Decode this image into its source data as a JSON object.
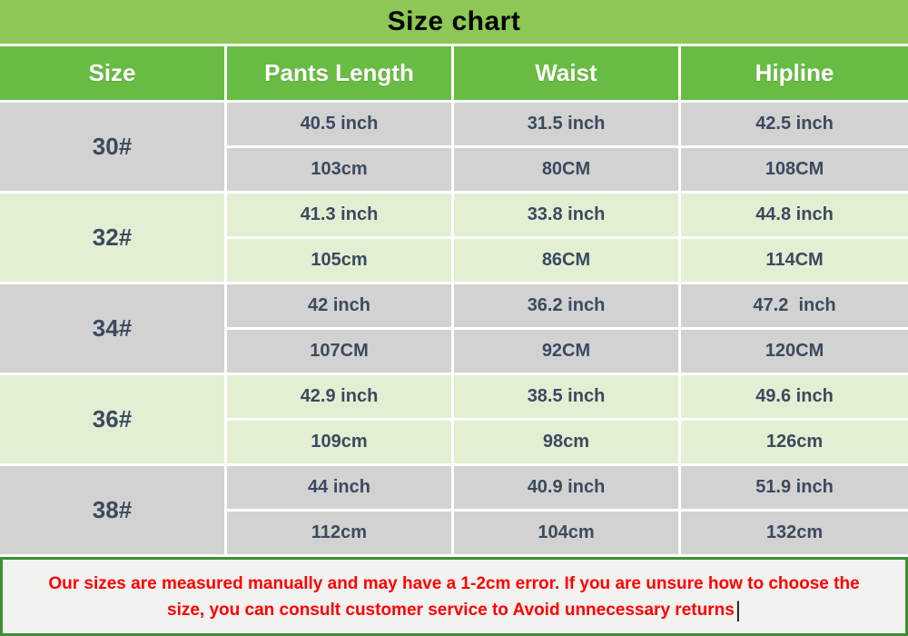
{
  "title": "Size chart",
  "colors": {
    "title_bar_green": "#8dc755",
    "header_green": "#68bc43",
    "row_gray": "#d2d2d2",
    "row_pale_green": "#e2efd3",
    "cell_text": "#3b4a5e",
    "header_text": "#ffffff",
    "note_background": "#f2f2f0",
    "note_border_green": "#3f8c39",
    "note_text_red": "#ff0000",
    "divider_white": "#ffffff"
  },
  "table": {
    "headers": [
      "Size",
      "Pants Length",
      "Waist",
      "Hipline"
    ],
    "rows": [
      {
        "size": "30#",
        "shade": "gray",
        "inch": [
          "40.5 inch",
          "31.5 inch",
          "42.5 inch"
        ],
        "cm": [
          "103cm",
          "80CM",
          "108CM"
        ]
      },
      {
        "size": "32#",
        "shade": "green",
        "inch": [
          "41.3 inch",
          "33.8 inch",
          "44.8 inch"
        ],
        "cm": [
          "105cm",
          "86CM",
          "114CM"
        ]
      },
      {
        "size": "34#",
        "shade": "gray",
        "inch": [
          "42 inch",
          "36.2 inch",
          "47.2  inch"
        ],
        "cm": [
          "107CM",
          "92CM",
          "120CM"
        ]
      },
      {
        "size": "36#",
        "shade": "green",
        "inch": [
          "42.9 inch",
          "38.5 inch",
          "49.6 inch"
        ],
        "cm": [
          "109cm",
          "98cm",
          "126cm"
        ]
      },
      {
        "size": "38#",
        "shade": "gray",
        "inch": [
          "44 inch",
          "40.9 inch",
          "51.9 inch"
        ],
        "cm": [
          "112cm",
          "104cm",
          "132cm"
        ]
      }
    ]
  },
  "chart_data": {
    "type": "table",
    "title": "Size chart",
    "columns": [
      "Size",
      "Pants Length",
      "Waist",
      "Hipline"
    ],
    "rows": [
      [
        "30#",
        "40.5 inch / 103cm",
        "31.5 inch / 80CM",
        "42.5 inch / 108CM"
      ],
      [
        "32#",
        "41.3 inch / 105cm",
        "33.8 inch / 86CM",
        "44.8 inch / 114CM"
      ],
      [
        "34#",
        "42 inch / 107CM",
        "36.2 inch / 92CM",
        "47.2 inch / 120CM"
      ],
      [
        "36#",
        "42.9 inch / 109cm",
        "38.5 inch / 98cm",
        "49.6 inch / 126cm"
      ],
      [
        "38#",
        "44 inch / 112cm",
        "40.9 inch / 104cm",
        "51.9 inch / 132cm"
      ]
    ]
  },
  "note": {
    "line1": "Our sizes are measured manually and may have a 1-2cm error. If you are unsure how to choose the",
    "line2": "size, you can consult customer service to Avoid unnecessary returns",
    "caret": "|"
  }
}
